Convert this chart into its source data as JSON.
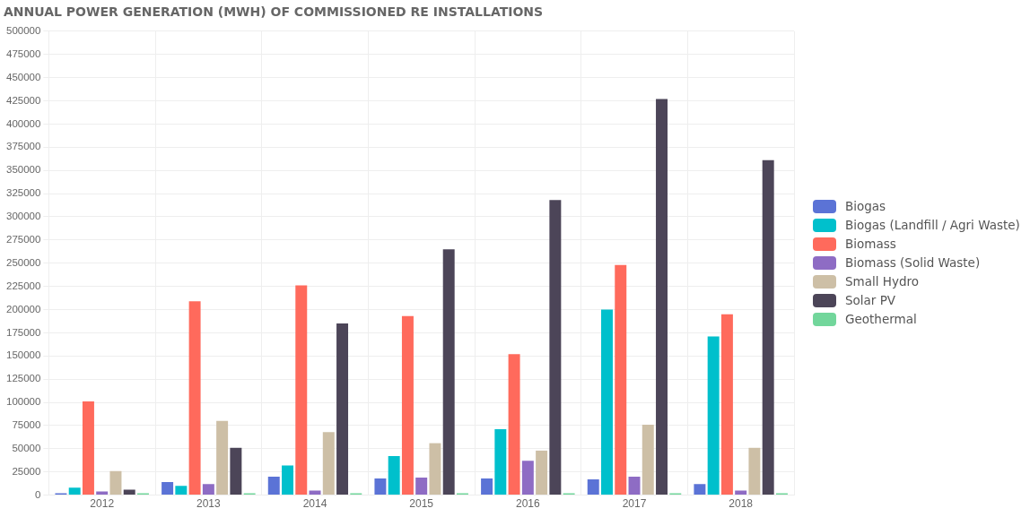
{
  "chart_data": {
    "type": "bar",
    "title": "ANNUAL POWER GENERATION (MWH) OF COMMISSIONED RE INSTALLATIONS",
    "categories": [
      "2012",
      "2013",
      "2014",
      "2015",
      "2016",
      "2017",
      "2018"
    ],
    "series": [
      {
        "name": "Biogas",
        "color": "#5b73d6",
        "values": [
          2000,
          14000,
          20000,
          18000,
          18000,
          17000,
          12000
        ]
      },
      {
        "name": "Biogas (Landfill / Agri Waste)",
        "color": "#00c0cc",
        "values": [
          8000,
          10000,
          32000,
          42000,
          71000,
          200000,
          171000
        ]
      },
      {
        "name": "Biomass",
        "color": "#ff6a5c",
        "values": [
          101000,
          209000,
          226000,
          193000,
          152000,
          248000,
          195000
        ]
      },
      {
        "name": "Biomass (Solid Waste)",
        "color": "#8e6cc4",
        "values": [
          4000,
          12000,
          5000,
          19000,
          37000,
          20000,
          5000
        ]
      },
      {
        "name": "Small Hydro",
        "color": "#cdbfa6",
        "values": [
          26000,
          80000,
          68000,
          56000,
          48000,
          76000,
          51000
        ]
      },
      {
        "name": "Solar PV",
        "color": "#4c4558",
        "values": [
          6000,
          51000,
          185000,
          265000,
          318000,
          427000,
          361000
        ]
      },
      {
        "name": "Geothermal",
        "color": "#72d69b",
        "values": [
          2000,
          2000,
          2000,
          2000,
          2000,
          2000,
          2000
        ]
      }
    ],
    "ylim": [
      0,
      500000
    ],
    "yticks": [
      0,
      25000,
      50000,
      75000,
      100000,
      125000,
      150000,
      175000,
      200000,
      225000,
      250000,
      275000,
      300000,
      325000,
      350000,
      375000,
      400000,
      425000,
      450000,
      475000,
      500000
    ],
    "grid": true,
    "legend": "right"
  }
}
